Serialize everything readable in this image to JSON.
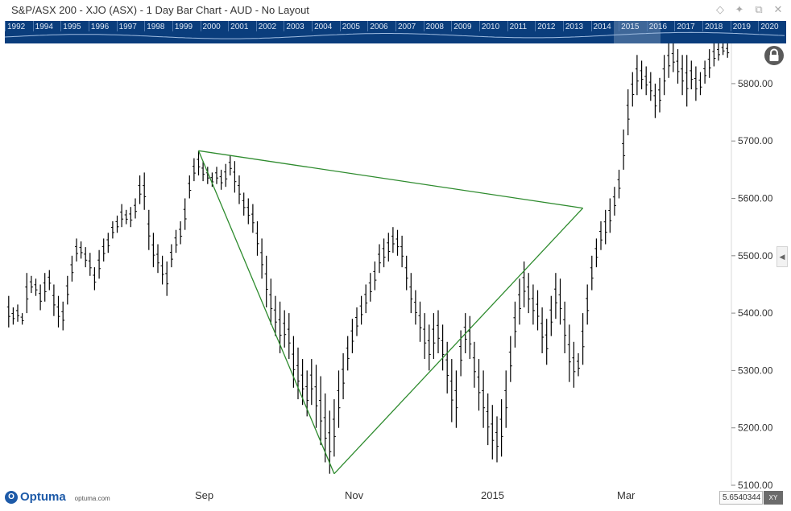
{
  "window": {
    "title": "S&P/ASX 200 - XJO (ASX) - 1 Day Bar Chart - AUD - No Layout",
    "icons": [
      "diamond-icon",
      "pin-icon",
      "restore-icon",
      "close-icon"
    ]
  },
  "overview": {
    "years": [
      "1992",
      "1994",
      "1995",
      "1996",
      "1997",
      "1998",
      "1999",
      "2000",
      "2001",
      "2002",
      "2003",
      "2004",
      "2005",
      "2006",
      "2007",
      "2008",
      "2009",
      "2010",
      "2011",
      "2012",
      "2013",
      "2014",
      "2015",
      "2016",
      "2017",
      "2018",
      "2019",
      "2020"
    ],
    "background": "#0a3d7c"
  },
  "chart_data": {
    "type": "bar",
    "title": "",
    "instrument": "S&P/ASX 200 - XJO (ASX)",
    "interval": "1 Day",
    "currency": "AUD",
    "yaxis": {
      "ticks": [
        "5100.00",
        "5200.00",
        "5300.00",
        "5400.00",
        "5500.00",
        "5600.00",
        "5700.00",
        "5800.00"
      ],
      "ylim": [
        5100,
        5870
      ],
      "position": "right"
    },
    "xaxis": {
      "ticks": [
        "Sep",
        "Nov",
        "2015",
        "Mar"
      ]
    },
    "bar_color": "#000000",
    "trendline_color": "#2e8b2e",
    "trendlines": [
      {
        "name": "",
        "points": [
          [
            0,
            5683
          ],
          [
            1,
            5120
          ]
        ]
      },
      {
        "name": "",
        "points": [
          [
            1,
            5120
          ],
          [
            2,
            5583
          ]
        ]
      },
      {
        "name": "",
        "points": [
          [
            2,
            5583
          ],
          [
            0,
            5683
          ]
        ]
      }
    ],
    "series_ohlc": [
      {
        "h": 5430,
        "l": 5375
      },
      {
        "h": 5410,
        "l": 5380
      },
      {
        "h": 5415,
        "l": 5385
      },
      {
        "h": 5400,
        "l": 5380
      },
      {
        "h": 5470,
        "l": 5400
      },
      {
        "h": 5465,
        "l": 5435
      },
      {
        "h": 5460,
        "l": 5430
      },
      {
        "h": 5450,
        "l": 5405
      },
      {
        "h": 5470,
        "l": 5420
      },
      {
        "h": 5475,
        "l": 5440
      },
      {
        "h": 5450,
        "l": 5395
      },
      {
        "h": 5430,
        "l": 5375
      },
      {
        "h": 5420,
        "l": 5370
      },
      {
        "h": 5465,
        "l": 5415
      },
      {
        "h": 5500,
        "l": 5455
      },
      {
        "h": 5530,
        "l": 5490
      },
      {
        "h": 5525,
        "l": 5495
      },
      {
        "h": 5515,
        "l": 5480
      },
      {
        "h": 5505,
        "l": 5465
      },
      {
        "h": 5480,
        "l": 5440
      },
      {
        "h": 5510,
        "l": 5460
      },
      {
        "h": 5530,
        "l": 5490
      },
      {
        "h": 5540,
        "l": 5505
      },
      {
        "h": 5560,
        "l": 5530
      },
      {
        "h": 5570,
        "l": 5540
      },
      {
        "h": 5590,
        "l": 5550
      },
      {
        "h": 5580,
        "l": 5555
      },
      {
        "h": 5585,
        "l": 5550
      },
      {
        "h": 5600,
        "l": 5565
      },
      {
        "h": 5640,
        "l": 5590
      },
      {
        "h": 5645,
        "l": 5580
      },
      {
        "h": 5580,
        "l": 5510
      },
      {
        "h": 5540,
        "l": 5480
      },
      {
        "h": 5520,
        "l": 5470
      },
      {
        "h": 5500,
        "l": 5450
      },
      {
        "h": 5490,
        "l": 5430
      },
      {
        "h": 5520,
        "l": 5480
      },
      {
        "h": 5545,
        "l": 5505
      },
      {
        "h": 5560,
        "l": 5520
      },
      {
        "h": 5600,
        "l": 5545
      },
      {
        "h": 5640,
        "l": 5600
      },
      {
        "h": 5670,
        "l": 5630
      },
      {
        "h": 5683,
        "l": 5640
      },
      {
        "h": 5665,
        "l": 5630
      },
      {
        "h": 5655,
        "l": 5625
      },
      {
        "h": 5645,
        "l": 5620
      },
      {
        "h": 5655,
        "l": 5625
      },
      {
        "h": 5650,
        "l": 5615
      },
      {
        "h": 5660,
        "l": 5620
      },
      {
        "h": 5675,
        "l": 5640
      },
      {
        "h": 5665,
        "l": 5610
      },
      {
        "h": 5640,
        "l": 5590
      },
      {
        "h": 5610,
        "l": 5570
      },
      {
        "h": 5600,
        "l": 5555
      },
      {
        "h": 5590,
        "l": 5540
      },
      {
        "h": 5560,
        "l": 5500
      },
      {
        "h": 5530,
        "l": 5460
      },
      {
        "h": 5500,
        "l": 5410
      },
      {
        "h": 5460,
        "l": 5380
      },
      {
        "h": 5430,
        "l": 5360
      },
      {
        "h": 5420,
        "l": 5330
      },
      {
        "h": 5405,
        "l": 5340
      },
      {
        "h": 5400,
        "l": 5320
      },
      {
        "h": 5360,
        "l": 5270
      },
      {
        "h": 5340,
        "l": 5250
      },
      {
        "h": 5320,
        "l": 5240
      },
      {
        "h": 5300,
        "l": 5220
      },
      {
        "h": 5320,
        "l": 5240
      },
      {
        "h": 5310,
        "l": 5200
      },
      {
        "h": 5290,
        "l": 5170
      },
      {
        "h": 5260,
        "l": 5140
      },
      {
        "h": 5230,
        "l": 5120
      },
      {
        "h": 5250,
        "l": 5150
      },
      {
        "h": 5300,
        "l": 5200
      },
      {
        "h": 5330,
        "l": 5250
      },
      {
        "h": 5360,
        "l": 5300
      },
      {
        "h": 5390,
        "l": 5330
      },
      {
        "h": 5410,
        "l": 5360
      },
      {
        "h": 5430,
        "l": 5380
      },
      {
        "h": 5450,
        "l": 5400
      },
      {
        "h": 5470,
        "l": 5420
      },
      {
        "h": 5490,
        "l": 5440
      },
      {
        "h": 5520,
        "l": 5470
      },
      {
        "h": 5530,
        "l": 5480
      },
      {
        "h": 5540,
        "l": 5490
      },
      {
        "h": 5550,
        "l": 5505
      },
      {
        "h": 5545,
        "l": 5500
      },
      {
        "h": 5535,
        "l": 5480
      },
      {
        "h": 5500,
        "l": 5440
      },
      {
        "h": 5470,
        "l": 5400
      },
      {
        "h": 5440,
        "l": 5380
      },
      {
        "h": 5420,
        "l": 5350
      },
      {
        "h": 5400,
        "l": 5320
      },
      {
        "h": 5380,
        "l": 5300
      },
      {
        "h": 5400,
        "l": 5320
      },
      {
        "h": 5405,
        "l": 5330
      },
      {
        "h": 5380,
        "l": 5300
      },
      {
        "h": 5350,
        "l": 5260
      },
      {
        "h": 5320,
        "l": 5210
      },
      {
        "h": 5300,
        "l": 5200
      },
      {
        "h": 5370,
        "l": 5290
      },
      {
        "h": 5400,
        "l": 5330
      },
      {
        "h": 5395,
        "l": 5320
      },
      {
        "h": 5350,
        "l": 5270
      },
      {
        "h": 5320,
        "l": 5230
      },
      {
        "h": 5300,
        "l": 5200
      },
      {
        "h": 5260,
        "l": 5170
      },
      {
        "h": 5240,
        "l": 5145
      },
      {
        "h": 5220,
        "l": 5140
      },
      {
        "h": 5250,
        "l": 5150
      },
      {
        "h": 5300,
        "l": 5200
      },
      {
        "h": 5360,
        "l": 5280
      },
      {
        "h": 5420,
        "l": 5340
      },
      {
        "h": 5460,
        "l": 5380
      },
      {
        "h": 5490,
        "l": 5410
      },
      {
        "h": 5470,
        "l": 5400
      },
      {
        "h": 5450,
        "l": 5380
      },
      {
        "h": 5440,
        "l": 5370
      },
      {
        "h": 5410,
        "l": 5330
      },
      {
        "h": 5390,
        "l": 5310
      },
      {
        "h": 5430,
        "l": 5360
      },
      {
        "h": 5470,
        "l": 5390
      },
      {
        "h": 5460,
        "l": 5380
      },
      {
        "h": 5420,
        "l": 5330
      },
      {
        "h": 5380,
        "l": 5280
      },
      {
        "h": 5350,
        "l": 5270
      },
      {
        "h": 5330,
        "l": 5290
      },
      {
        "h": 5400,
        "l": 5310
      },
      {
        "h": 5450,
        "l": 5380
      },
      {
        "h": 5500,
        "l": 5440
      },
      {
        "h": 5530,
        "l": 5480
      },
      {
        "h": 5560,
        "l": 5510
      },
      {
        "h": 5580,
        "l": 5520
      },
      {
        "h": 5600,
        "l": 5540
      },
      {
        "h": 5620,
        "l": 5570
      },
      {
        "h": 5650,
        "l": 5600
      },
      {
        "h": 5720,
        "l": 5650
      },
      {
        "h": 5790,
        "l": 5710
      },
      {
        "h": 5820,
        "l": 5760
      },
      {
        "h": 5850,
        "l": 5780
      },
      {
        "h": 5840,
        "l": 5790
      },
      {
        "h": 5830,
        "l": 5780
      },
      {
        "h": 5820,
        "l": 5770
      },
      {
        "h": 5800,
        "l": 5740
      },
      {
        "h": 5810,
        "l": 5750
      },
      {
        "h": 5850,
        "l": 5780
      },
      {
        "h": 5870,
        "l": 5810
      },
      {
        "h": 5870,
        "l": 5820
      },
      {
        "h": 5860,
        "l": 5800
      },
      {
        "h": 5850,
        "l": 5780
      },
      {
        "h": 5850,
        "l": 5760
      },
      {
        "h": 5840,
        "l": 5790
      },
      {
        "h": 5830,
        "l": 5770
      },
      {
        "h": 5820,
        "l": 5780
      },
      {
        "h": 5840,
        "l": 5800
      },
      {
        "h": 5860,
        "l": 5810
      },
      {
        "h": 5870,
        "l": 5830
      },
      {
        "h": 5870,
        "l": 5840
      },
      {
        "h": 5870,
        "l": 5850
      },
      {
        "h": 5870,
        "l": 5845
      }
    ]
  },
  "footer": {
    "brand": "Optuma",
    "brand_mark": "O",
    "url": "optuma.com",
    "readout_value": "5.6540344",
    "mode_button": "XY"
  }
}
